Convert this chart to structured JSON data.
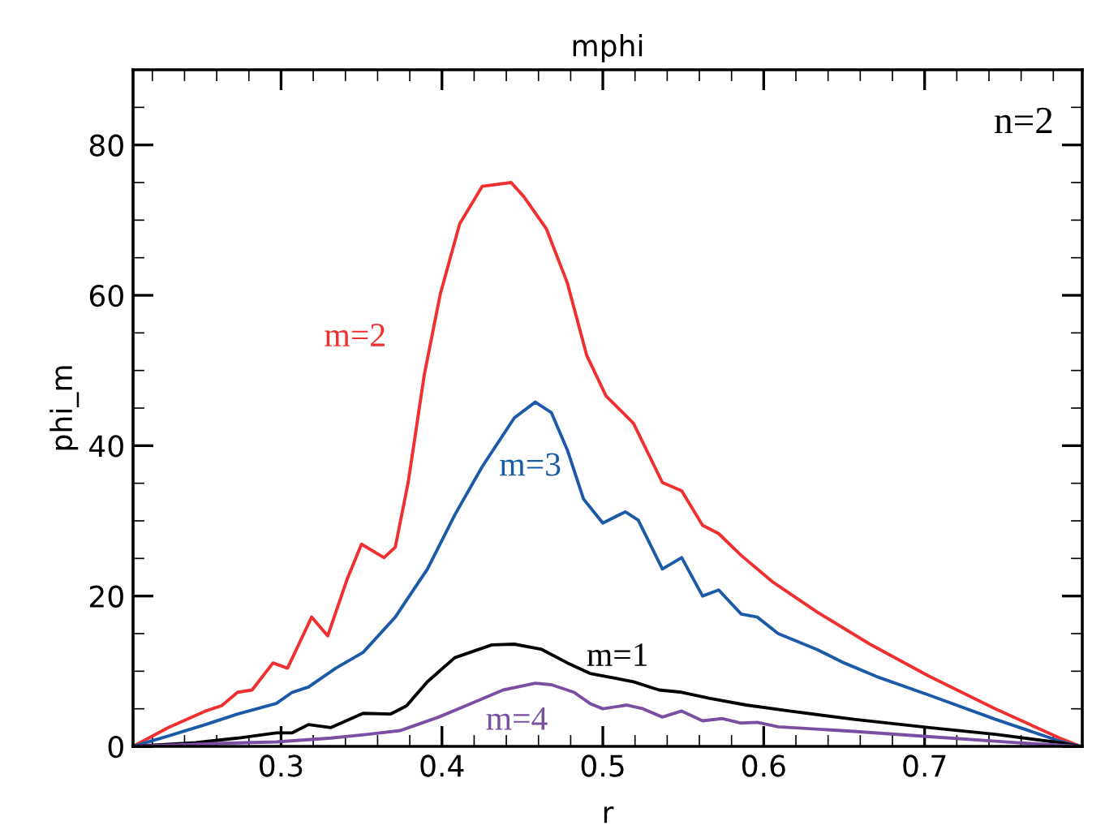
{
  "chart_data": {
    "type": "line",
    "title": "mphi",
    "xlabel": "r",
    "ylabel": "phi_m",
    "xlim": [
      0.208,
      0.798
    ],
    "xticks": [
      0.3,
      0.4,
      0.5,
      0.6,
      0.7
    ],
    "ylim": [
      0,
      90
    ],
    "yticks": [
      0,
      20,
      40,
      60,
      80
    ],
    "grid": false,
    "legend": false,
    "marker": "none",
    "line_style": "solid",
    "annotations": [
      "n=2"
    ],
    "series": [
      {
        "name": "m=2",
        "color": "#f03030",
        "x": [
          0.208,
          0.23,
          0.253,
          0.263,
          0.273,
          0.282,
          0.295,
          0.304,
          0.319,
          0.329,
          0.341,
          0.35,
          0.364,
          0.371,
          0.379,
          0.389,
          0.399,
          0.411,
          0.425,
          0.443,
          0.451,
          0.465,
          0.478,
          0.49,
          0.502,
          0.519,
          0.537,
          0.549,
          0.562,
          0.572,
          0.586,
          0.606,
          0.633,
          0.666,
          0.703,
          0.744,
          0.784,
          0.797
        ],
        "values": [
          0,
          2.5,
          4.7,
          5.4,
          7.2,
          7.5,
          11.1,
          10.4,
          17.2,
          14.7,
          22.2,
          26.9,
          25.1,
          26.5,
          35.1,
          49.4,
          60.2,
          69.5,
          74.5,
          75.0,
          73.1,
          68.8,
          61.6,
          52.0,
          46.6,
          43.0,
          35.1,
          34.0,
          29.4,
          28.3,
          25.4,
          21.8,
          17.9,
          13.6,
          9.3,
          5.0,
          1.1,
          0
        ]
      },
      {
        "name": "m=3",
        "color": "#1c5aa8",
        "x": [
          0.208,
          0.23,
          0.253,
          0.273,
          0.285,
          0.297,
          0.307,
          0.317,
          0.334,
          0.351,
          0.371,
          0.391,
          0.408,
          0.425,
          0.445,
          0.458,
          0.468,
          0.478,
          0.488,
          0.5,
          0.514,
          0.522,
          0.537,
          0.549,
          0.562,
          0.572,
          0.586,
          0.596,
          0.609,
          0.633,
          0.65,
          0.67,
          0.703,
          0.744,
          0.784,
          0.797
        ],
        "values": [
          0,
          1.4,
          2.9,
          4.3,
          5.0,
          5.7,
          7.2,
          7.9,
          10.4,
          12.5,
          17.2,
          23.6,
          30.8,
          37.2,
          43.7,
          45.8,
          44.4,
          39.4,
          32.9,
          29.7,
          31.2,
          30.1,
          23.6,
          25.1,
          20.0,
          20.8,
          17.6,
          17.2,
          15.0,
          12.9,
          11.1,
          9.3,
          6.8,
          3.6,
          0.7,
          0
        ]
      },
      {
        "name": "m=1",
        "color": "#000000",
        "x": [
          0.208,
          0.247,
          0.273,
          0.297,
          0.307,
          0.317,
          0.331,
          0.351,
          0.368,
          0.378,
          0.391,
          0.408,
          0.431,
          0.445,
          0.462,
          0.478,
          0.492,
          0.502,
          0.519,
          0.535,
          0.549,
          0.566,
          0.589,
          0.616,
          0.656,
          0.703,
          0.744,
          0.784,
          0.797
        ],
        "values": [
          0,
          0.5,
          1.1,
          1.8,
          1.8,
          2.9,
          2.5,
          4.4,
          4.3,
          5.4,
          8.6,
          11.8,
          13.5,
          13.6,
          12.9,
          11.1,
          9.7,
          9.3,
          8.6,
          7.5,
          7.2,
          6.4,
          5.5,
          4.7,
          3.6,
          2.5,
          1.6,
          0.5,
          0
        ]
      },
      {
        "name": "m=4",
        "color": "#7a4ea0",
        "x": [
          0.208,
          0.263,
          0.297,
          0.331,
          0.354,
          0.374,
          0.398,
          0.418,
          0.438,
          0.458,
          0.468,
          0.482,
          0.492,
          0.5,
          0.515,
          0.525,
          0.537,
          0.549,
          0.562,
          0.574,
          0.586,
          0.596,
          0.609,
          0.656,
          0.703,
          0.757,
          0.797
        ],
        "values": [
          0,
          0.4,
          0.6,
          1.1,
          1.6,
          2.1,
          3.9,
          5.7,
          7.5,
          8.4,
          8.2,
          7.2,
          5.7,
          5.0,
          5.5,
          5.0,
          3.9,
          4.7,
          3.4,
          3.7,
          3.1,
          3.2,
          2.6,
          2.0,
          1.3,
          0.5,
          0
        ]
      }
    ]
  }
}
